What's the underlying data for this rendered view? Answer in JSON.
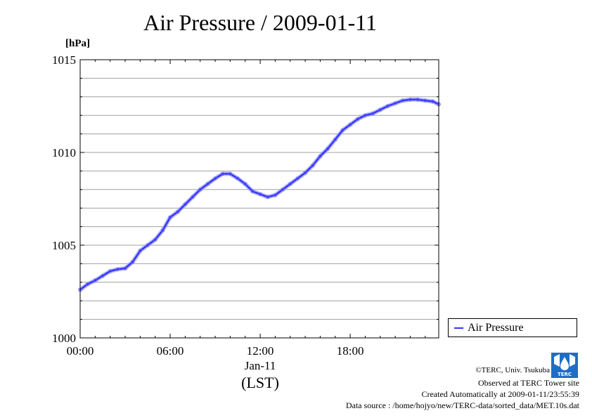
{
  "chart_data": {
    "type": "line",
    "title": "Air Pressure / 2009-01-11",
    "ylabel": "[hPa]",
    "xlabel": "(LST)",
    "x_date_label": "Jan-11",
    "ylim": [
      1000,
      1015
    ],
    "xlim_hours": [
      0,
      23.9
    ],
    "y_ticks": [
      "1000",
      "1005",
      "1010",
      "1015"
    ],
    "x_ticks": [
      {
        "hour": 0,
        "label": "00:00"
      },
      {
        "hour": 6,
        "label": "06:00"
      },
      {
        "hour": 12,
        "label": "12:00"
      },
      {
        "hour": 18,
        "label": "18:00"
      }
    ],
    "grid": true,
    "legend_position": "right",
    "series": [
      {
        "name": "Air Pressure",
        "color": "#3333ff",
        "x_hours": [
          0,
          0.5,
          1,
          1.5,
          2,
          2.5,
          3,
          3.5,
          4,
          4.5,
          5,
          5.5,
          6,
          6.5,
          7,
          7.5,
          8,
          8.5,
          9,
          9.5,
          10,
          10.5,
          11,
          11.5,
          12,
          12.5,
          13,
          13.5,
          14,
          14.5,
          15,
          15.5,
          16,
          16.5,
          17,
          17.5,
          18,
          18.5,
          19,
          19.5,
          20,
          20.5,
          21,
          21.5,
          22,
          22.5,
          23,
          23.5,
          23.9
        ],
        "values": [
          1002.6,
          1002.9,
          1003.1,
          1003.35,
          1003.6,
          1003.7,
          1003.75,
          1004.1,
          1004.7,
          1005.0,
          1005.3,
          1005.8,
          1006.5,
          1006.8,
          1007.2,
          1007.6,
          1008.0,
          1008.3,
          1008.6,
          1008.85,
          1008.85,
          1008.6,
          1008.3,
          1007.9,
          1007.75,
          1007.6,
          1007.7,
          1008.0,
          1008.3,
          1008.6,
          1008.9,
          1009.3,
          1009.8,
          1010.2,
          1010.7,
          1011.2,
          1011.5,
          1011.8,
          1012.0,
          1012.1,
          1012.3,
          1012.5,
          1012.65,
          1012.8,
          1012.85,
          1012.85,
          1012.8,
          1012.75,
          1012.6
        ]
      }
    ]
  },
  "footer": {
    "copyright": "©TERC, Univ. Tsukuba",
    "observed": "Observed at TERC Tower site",
    "created": "Created Automatically at 2009-01-11/23:55:39",
    "source": "Data source : /home/hojyo/new/TERC-data/sorted_data/MET.10s.dat"
  },
  "logo": {
    "text": "TERC",
    "color": "#1e6ec8"
  }
}
